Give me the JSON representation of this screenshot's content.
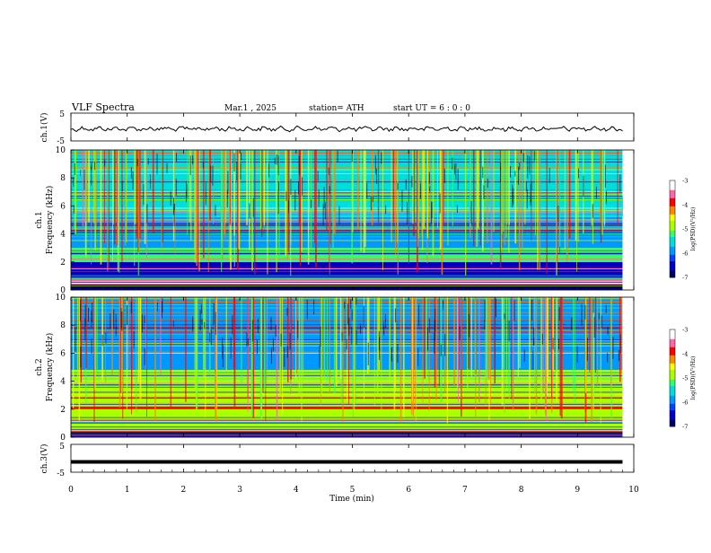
{
  "header": {
    "title": "VLF  Spectra",
    "date": "Mar.1  , 2025",
    "station": "station= ATH",
    "start": "start  UT  =   6  : 0  : 0"
  },
  "colors": {
    "colormap": [
      "#000066",
      "#0000cc",
      "#0044ff",
      "#0099ff",
      "#00dddd",
      "#33ff66",
      "#aaff00",
      "#ffff00",
      "#ff8800",
      "#ff0000",
      "#ff66aa",
      "#ffffff"
    ],
    "trace": "#000000"
  },
  "chart_data": [
    {
      "type": "line",
      "name": "ch1-waveform",
      "ylabel": "ch.1(V)",
      "ylim": [
        -5,
        5
      ],
      "y_ticks": [
        "5",
        "-5"
      ],
      "x": [
        0,
        9.8
      ],
      "values_description_free": true,
      "baseline": 0
    },
    {
      "type": "heatmap",
      "name": "ch1-spectrogram",
      "ylabel": "ch.1\nFrequency  (kHz)",
      "ylabel_lines": [
        "ch.1",
        "Frequency  (kHz)"
      ],
      "ylim": [
        0,
        10
      ],
      "y_ticks": [
        "0",
        "2",
        "4",
        "6",
        "8",
        "10"
      ],
      "xlim": [
        0,
        10
      ],
      "data_end_min": 9.8,
      "colorbar": {
        "label": "log(PSD)(V²/Hz)",
        "range": [
          -7,
          -3
        ],
        "ticks": [
          "-3",
          "-4",
          "-5",
          "-6",
          "-7"
        ]
      },
      "bands": [
        {
          "f": [
            0.0,
            0.4
          ],
          "level": -7.0
        },
        {
          "f": [
            0.6,
            0.8
          ],
          "level": -3.5
        },
        {
          "f": [
            0.8,
            2.0
          ],
          "level": -6.5
        },
        {
          "f": [
            2.0,
            3.0
          ],
          "level": -5.3
        },
        {
          "f": [
            3.0,
            5.2
          ],
          "level": -6.0
        },
        {
          "f": [
            5.2,
            10.0
          ],
          "level": -5.6
        }
      ]
    },
    {
      "type": "heatmap",
      "name": "ch2-spectrogram",
      "ylabel_lines": [
        "ch.2",
        "Frequency  (kHz)"
      ],
      "ylim": [
        0,
        10
      ],
      "y_ticks": [
        "0",
        "2",
        "4",
        "6",
        "8",
        "10"
      ],
      "xlim": [
        0,
        10
      ],
      "data_end_min": 9.8,
      "colorbar": {
        "label": "log(PSD)(V²/Hz)",
        "range": [
          -7,
          -3
        ],
        "ticks": [
          "-3",
          "-4",
          "-5",
          "-6",
          "-7"
        ]
      },
      "bands": [
        {
          "f": [
            0.0,
            0.4
          ],
          "level": -7.0
        },
        {
          "f": [
            0.4,
            1.2
          ],
          "level": -4.8
        },
        {
          "f": [
            1.2,
            2.0
          ],
          "level": -5.0
        },
        {
          "f": [
            2.0,
            2.2
          ],
          "level": -3.8
        },
        {
          "f": [
            2.2,
            4.8
          ],
          "level": -4.8
        },
        {
          "f": [
            4.8,
            10.0
          ],
          "level": -5.8
        }
      ]
    },
    {
      "type": "line",
      "name": "ch3-waveform",
      "ylabel": "ch.3(V)",
      "ylim": [
        -5,
        5
      ],
      "y_ticks": [
        "5",
        "-5"
      ],
      "x": [
        0,
        9.8
      ],
      "baseline": -1.3
    }
  ],
  "x_axis": {
    "label": "Time  (min)",
    "ticks": [
      "0",
      "1",
      "2",
      "3",
      "4",
      "5",
      "6",
      "7",
      "8",
      "9",
      "10"
    ],
    "range": [
      0,
      10
    ]
  }
}
